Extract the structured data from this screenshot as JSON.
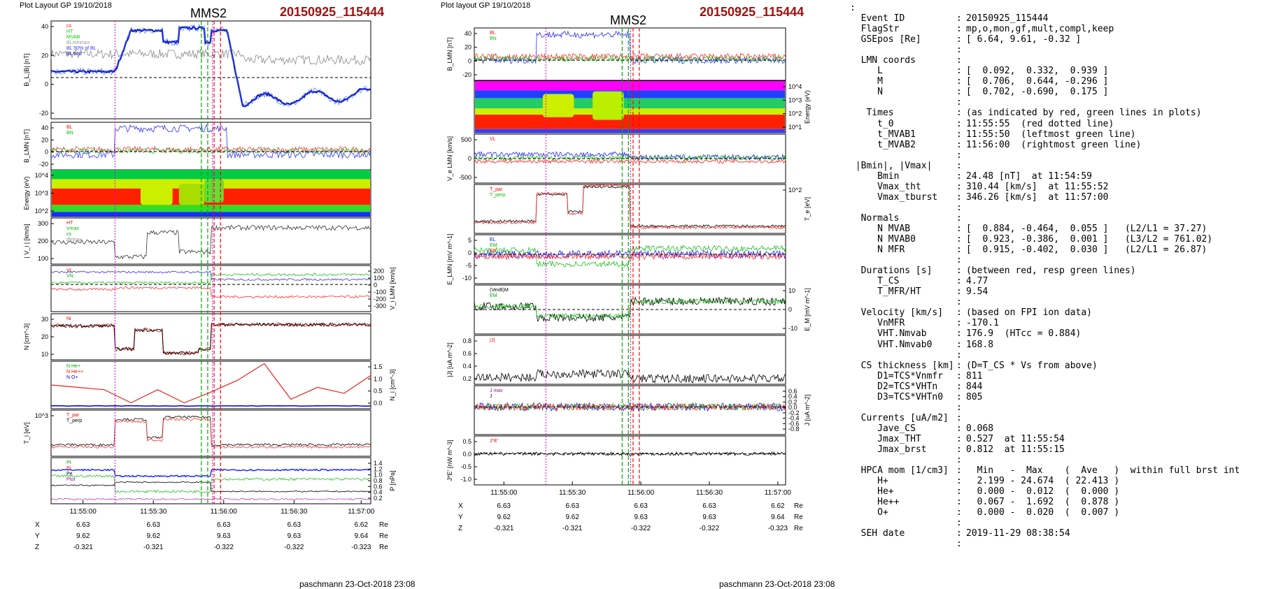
{
  "left_panel": {
    "header": "Plot Layout GP 19/10/2018",
    "spacecraft": "MMS2",
    "event": "20150925_115444",
    "footer": "paschmann 23-Oct-2018 23:08",
    "time_ticks": [
      "11:55:00",
      "11:55:30",
      "11:56:00",
      "11:56:30",
      "11:57:00"
    ],
    "pos_rows": [
      {
        "label": "X",
        "values": [
          "6.63",
          "6.63",
          "6.63",
          "6.63",
          "6.62"
        ],
        "unit": "Re"
      },
      {
        "label": "Y",
        "values": [
          "9.62",
          "9.62",
          "9.63",
          "9.63",
          "9.64"
        ],
        "unit": "Re"
      },
      {
        "label": "Z",
        "values": [
          "-0.321",
          "-0.321",
          "-0.322",
          "-0.322",
          "-0.323"
        ],
        "unit": "Re"
      }
    ],
    "panels": [
      {
        "ylabel": "B_L,|B| [nT]",
        "ticks": [
          "40",
          "20",
          "0",
          "-20"
        ],
        "legend": [
          "cs",
          "HT",
          "MVAB",
          "BLminmax",
          "BL 50% of BL",
          "BL brst"
        ]
      },
      {
        "ylabel": "B_LMN [nT]",
        "ticks": [
          "40",
          "20",
          "0",
          "-20"
        ],
        "legend": [
          "BL",
          "BN"
        ]
      },
      {
        "ylabel": "Energy (eV)",
        "ticks": [
          "10^4",
          "10^3",
          "10^2"
        ],
        "legend": []
      },
      {
        "ylabel": "| V_i | [km/s]",
        "ticks": [
          "300",
          "200",
          "100"
        ],
        "legend": [
          "HT",
          "Vmax",
          "cs",
          "dVmax"
        ]
      },
      {
        "ylabel": "V_i LMN [km/s]",
        "ticks": [
          "200",
          "100",
          "0",
          "-100",
          "-200",
          "-300"
        ],
        "legend": [
          "VL",
          "VN"
        ]
      },
      {
        "ylabel": "N [cm^-3]",
        "ticks": [
          "30",
          "20",
          "10"
        ],
        "legend": [
          "Ni"
        ]
      },
      {
        "ylabel": "N_i [cm^-3]",
        "ticks": [
          "1.5",
          "1.0",
          "0.5",
          "0.0"
        ],
        "legend": [
          "N He+",
          "N He++",
          "N O+"
        ]
      },
      {
        "ylabel": "T_i [eV]",
        "ticks": [
          "10^3"
        ],
        "legend": [
          "T_par",
          "T_perp"
        ]
      },
      {
        "ylabel": "P [nPa]",
        "ticks": [
          "1.4",
          "1.2",
          "1.0",
          "0.8",
          "0.6",
          "0.4",
          "0.2"
        ],
        "legend": [
          "Pt",
          "Pi",
          "Pe",
          "Ptot"
        ]
      }
    ]
  },
  "middle_panel": {
    "header": "Plot layout GP 19/10/2018",
    "spacecraft": "MMS2",
    "event": "20150925_115444",
    "footer": "paschmann 23-Oct-2018 23:08",
    "time_ticks": [
      "11:55:00",
      "11:55:30",
      "11:56:00",
      "11:56:30",
      "11:57:00"
    ],
    "pos_rows": [
      {
        "label": "X",
        "values": [
          "6.63",
          "6.63",
          "6.63",
          "6.63",
          "6.62"
        ],
        "unit": "Re"
      },
      {
        "label": "Y",
        "values": [
          "9.62",
          "9.62",
          "9.63",
          "9.63",
          "9.64"
        ],
        "unit": "Re"
      },
      {
        "label": "Z",
        "values": [
          "-0.321",
          "-0.321",
          "-0.322",
          "-0.322",
          "-0.323"
        ],
        "unit": "Re"
      }
    ],
    "panels": [
      {
        "ylabel": "B_LMN [nT]",
        "ticks": [
          "40",
          "20",
          "0",
          "-20"
        ],
        "legend": [
          "BL",
          "BN"
        ]
      },
      {
        "ylabel": "Energy (eV)",
        "ticks": [
          "10^4",
          "10^3",
          "10^2",
          "10^1"
        ],
        "legend": []
      },
      {
        "ylabel": "V_e LMN [km/s]",
        "ticks": [
          "500",
          "0",
          "-500"
        ],
        "legend": [
          "VL"
        ]
      },
      {
        "ylabel": "T_e [eV]",
        "ticks": [
          "10^2"
        ],
        "legend": [
          "T_par",
          "T_perp"
        ]
      },
      {
        "ylabel": "E_LMN [mV m^-1]",
        "ticks": [
          "5",
          "0",
          "-5",
          "-10"
        ],
        "legend": [
          "EL",
          "EM",
          "EN"
        ]
      },
      {
        "ylabel": "E_M [mV m^-1]",
        "ticks": [
          "10",
          "0",
          "-10"
        ],
        "legend": [
          "(VexB)M",
          "EM"
        ]
      },
      {
        "ylabel": "|J| [uA m^-2]",
        "ticks": [
          "0.8",
          "0.6",
          "0.4",
          "0.2"
        ],
        "legend": [
          "|J|"
        ]
      },
      {
        "ylabel": "J [uA m^-2]",
        "ticks": [
          "0.6",
          "0.4",
          "0.2",
          "0.0",
          "-0.2",
          "-0.4",
          "-0.6",
          "-0.8"
        ],
        "legend": [
          "J max",
          "J"
        ]
      },
      {
        "ylabel": "J*E' [nW m^-3]",
        "ticks": [
          "0.5",
          "0.0",
          "-0.5",
          "-1.0"
        ],
        "legend": [
          "J*E'"
        ]
      }
    ]
  },
  "info_lines": [
    {
      "k": ":",
      "c": "",
      "v": ""
    },
    {
      "k": "  Event ID",
      "c": ":",
      "v": "20150925_115444"
    },
    {
      "k": "  FlagStr",
      "c": ":",
      "v": "mp,o,mon,gf,mult,compl,keep"
    },
    {
      "k": "  GSEpos [Re]",
      "c": ":",
      "v": "[ 6.64, 9.61, -0.32 ]"
    },
    {
      "k": "",
      "c": ":",
      "v": ""
    },
    {
      "k": "  LMN coords",
      "c": ":",
      "v": ""
    },
    {
      "k": "     L",
      "c": ":",
      "v": "[  0.092,  0.332,  0.939 ]"
    },
    {
      "k": "     M",
      "c": ":",
      "v": "[  0.706,  0.644, -0.296 ]"
    },
    {
      "k": "     N",
      "c": ":",
      "v": "[  0.702, -0.690,  0.175 ]"
    },
    {
      "k": "",
      "c": ":",
      "v": ""
    },
    {
      "k": "   Times",
      "c": ":",
      "v": "(as indicated by red, green lines in plots)"
    },
    {
      "k": "     t_0",
      "c": ":",
      "v": "11:55:55  (red dotted line)"
    },
    {
      "k": "     t_MVAB1",
      "c": ":",
      "v": "11:55:50  (leftmost green line)"
    },
    {
      "k": "     t_MVAB2",
      "c": ":",
      "v": "11:56:00  (rightmost green line)"
    },
    {
      "k": "",
      "c": ":",
      "v": ""
    },
    {
      "k": " |Bmin|, |Vmax|",
      "c": ":",
      "v": ""
    },
    {
      "k": "     Bmin",
      "c": ":",
      "v": "24.48 [nT]  at 11:54:59"
    },
    {
      "k": "     Vmax_tht",
      "c": ":",
      "v": "310.44 [km/s]  at 11:55:52"
    },
    {
      "k": "     Vmax_tburst",
      "c": ":",
      "v": "346.26 [km/s]  at 11:57:00"
    },
    {
      "k": "",
      "c": ":",
      "v": ""
    },
    {
      "k": "  Normals",
      "c": ":",
      "v": ""
    },
    {
      "k": "     N MVAB",
      "c": ":",
      "v": "[  0.884, -0.464,  0.055 ]   (L2/L1 = 37.27)"
    },
    {
      "k": "     N MVAB0",
      "c": ":",
      "v": "[  0.923, -0.386,  0.001 ]   (L3/L2 = 761.02)"
    },
    {
      "k": "     N MFR",
      "c": ":",
      "v": "[  0.915, -0.402,  0.030 ]   (L2/L1 = 26.87)"
    },
    {
      "k": "",
      "c": ":",
      "v": ""
    },
    {
      "k": "  Durations [s]",
      "c": ":",
      "v": "(between red, resp green lines)"
    },
    {
      "k": "     T_CS",
      "c": ":",
      "v": "4.77"
    },
    {
      "k": "     T_MFR/HT",
      "c": ":",
      "v": "9.54"
    },
    {
      "k": "",
      "c": ":",
      "v": ""
    },
    {
      "k": "  Velocity [km/s]",
      "c": ":",
      "v": "(based on FPI ion data)"
    },
    {
      "k": "     VnMFR",
      "c": ":",
      "v": "-170.1"
    },
    {
      "k": "     VHT.Nmvab",
      "c": ":",
      "v": "176.9  (HTcc = 0.884)"
    },
    {
      "k": "     VHT.Nmvab0",
      "c": ":",
      "v": "168.8"
    },
    {
      "k": "",
      "c": ":",
      "v": ""
    },
    {
      "k": "  CS thickness [km]",
      "c": ":",
      "v": "(D=T_CS * Vs from above)"
    },
    {
      "k": "     D1=TCS*Vnmfr",
      "c": ":",
      "v": "811"
    },
    {
      "k": "     D2=TCS*VHTn",
      "c": ":",
      "v": "844"
    },
    {
      "k": "     D3=TCS*VHTn0",
      "c": ":",
      "v": "805"
    },
    {
      "k": "",
      "c": ":",
      "v": ""
    },
    {
      "k": "  Currents [uA/m2]",
      "c": ":",
      "v": ""
    },
    {
      "k": "     Jave_CS",
      "c": ":",
      "v": "0.068"
    },
    {
      "k": "     Jmax_THT",
      "c": ":",
      "v": "0.527  at 11:55:54"
    },
    {
      "k": "     Jmax_brst",
      "c": ":",
      "v": "0.812  at 11:55:15"
    },
    {
      "k": "",
      "c": ":",
      "v": ""
    },
    {
      "k": "  HPCA mom [1/cm3]",
      "c": ":",
      "v": "  Min   -  Max    (  Ave   )  within full brst int"
    },
    {
      "k": "     H+",
      "c": ":",
      "v": "  2.199 - 24.674  ( 22.413 )"
    },
    {
      "k": "     He+",
      "c": ":",
      "v": "  0.000 -  0.012  (  0.000 )"
    },
    {
      "k": "     He++",
      "c": ":",
      "v": "  0.067 -  1.692  (  0.878 )"
    },
    {
      "k": "     O+",
      "c": ":",
      "v": "  0.000 -  0.020  (  0.007 )"
    },
    {
      "k": "",
      "c": ":",
      "v": ""
    },
    {
      "k": "  SEH date",
      "c": ":",
      "v": "2019-11-29 08:38:54"
    },
    {
      "k": "",
      "c": ":",
      "v": ""
    }
  ],
  "chart_data": [
    {
      "type": "line",
      "title": "MMS2 20150925_115444",
      "x_ticks": [
        "11:55:00",
        "11:55:30",
        "11:56:00",
        "11:56:30",
        "11:57:00"
      ],
      "series": [
        {
          "name": "BL",
          "color": "#0000ff"
        },
        {
          "name": "BN",
          "color": "#ff0000"
        },
        {
          "name": "Ni",
          "color": "#000000"
        },
        {
          "name": "Pi",
          "color": "#00c000"
        }
      ],
      "ylim_BL": [
        -30,
        45
      ]
    }
  ]
}
